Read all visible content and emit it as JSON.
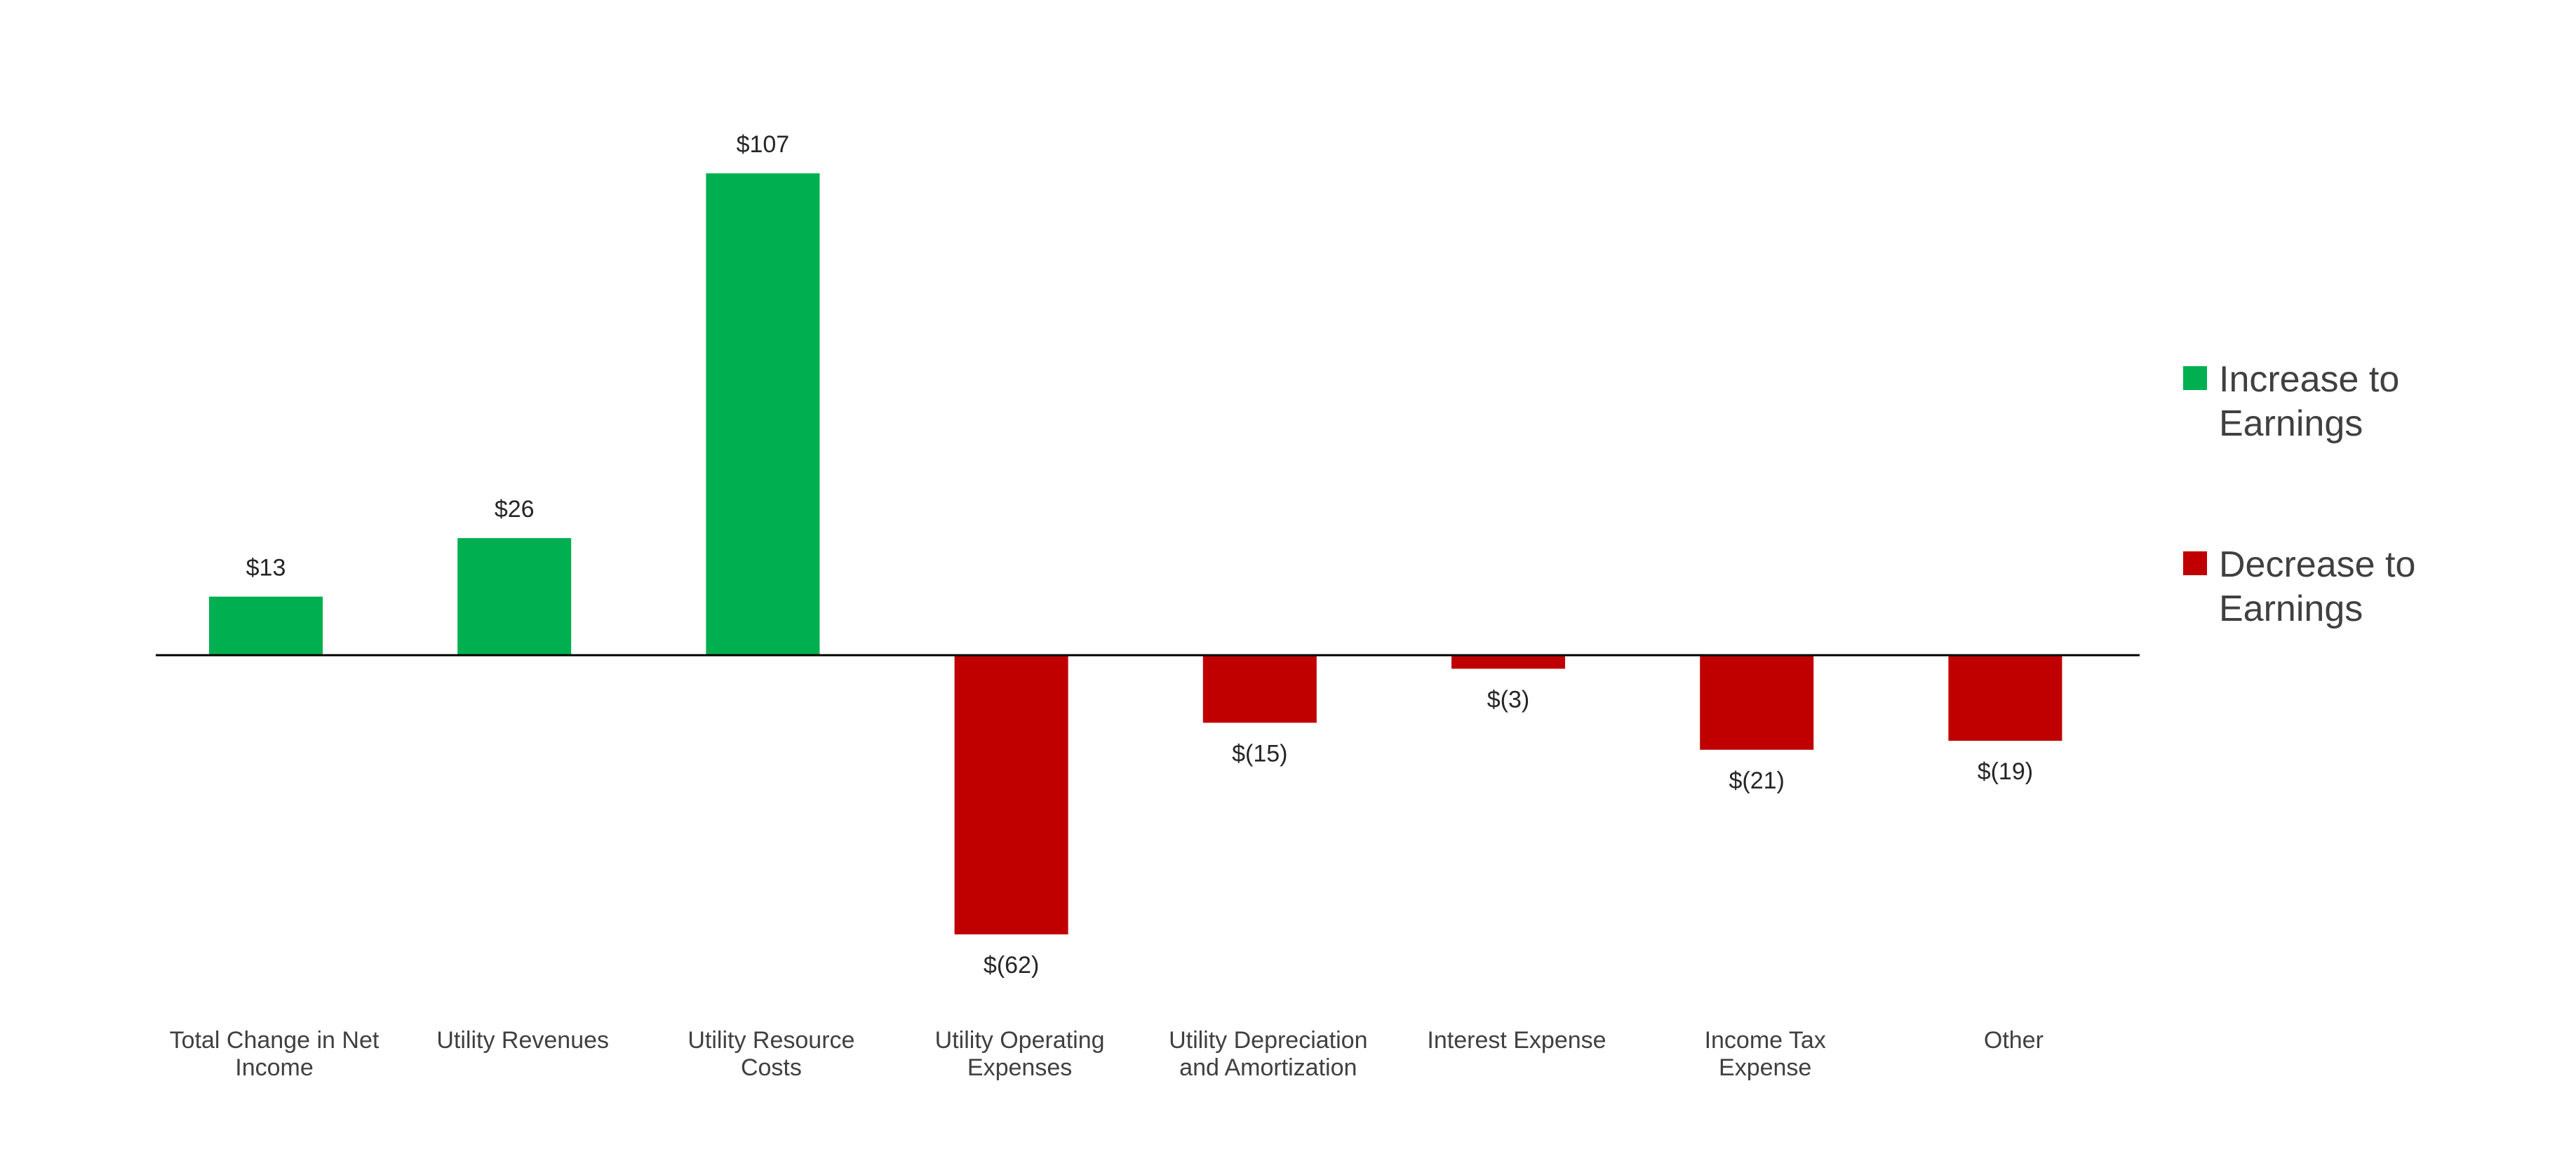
{
  "chart_data": {
    "type": "bar",
    "categories": [
      [
        "Total Change in Net",
        "Income"
      ],
      [
        "Utility Revenues"
      ],
      [
        "Utility Resource",
        "Costs"
      ],
      [
        "Utility Operating",
        "Expenses"
      ],
      [
        "Utility Depreciation",
        "and Amortization"
      ],
      [
        "Interest Expense"
      ],
      [
        "Income Tax",
        "Expense"
      ],
      [
        "Other"
      ]
    ],
    "values": [
      13,
      26,
      107,
      -62,
      -15,
      -3,
      -21,
      -19
    ],
    "data_labels": [
      "$13",
      "$26",
      "$107",
      "$(62)",
      "$(15)",
      "$(3)",
      "$(21)",
      "$(19)"
    ],
    "title": "",
    "xlabel": "",
    "ylabel": "",
    "legend": {
      "placement": "right",
      "entries": [
        {
          "lines": [
            "Increase to",
            "Earnings"
          ],
          "color": "#00B050"
        },
        {
          "lines": [
            "Decrease to",
            "Earnings"
          ],
          "color": "#C00000"
        }
      ]
    },
    "colors": {
      "positive": "#00B050",
      "negative": "#C00000",
      "axis": "#000000"
    },
    "grid": false
  }
}
